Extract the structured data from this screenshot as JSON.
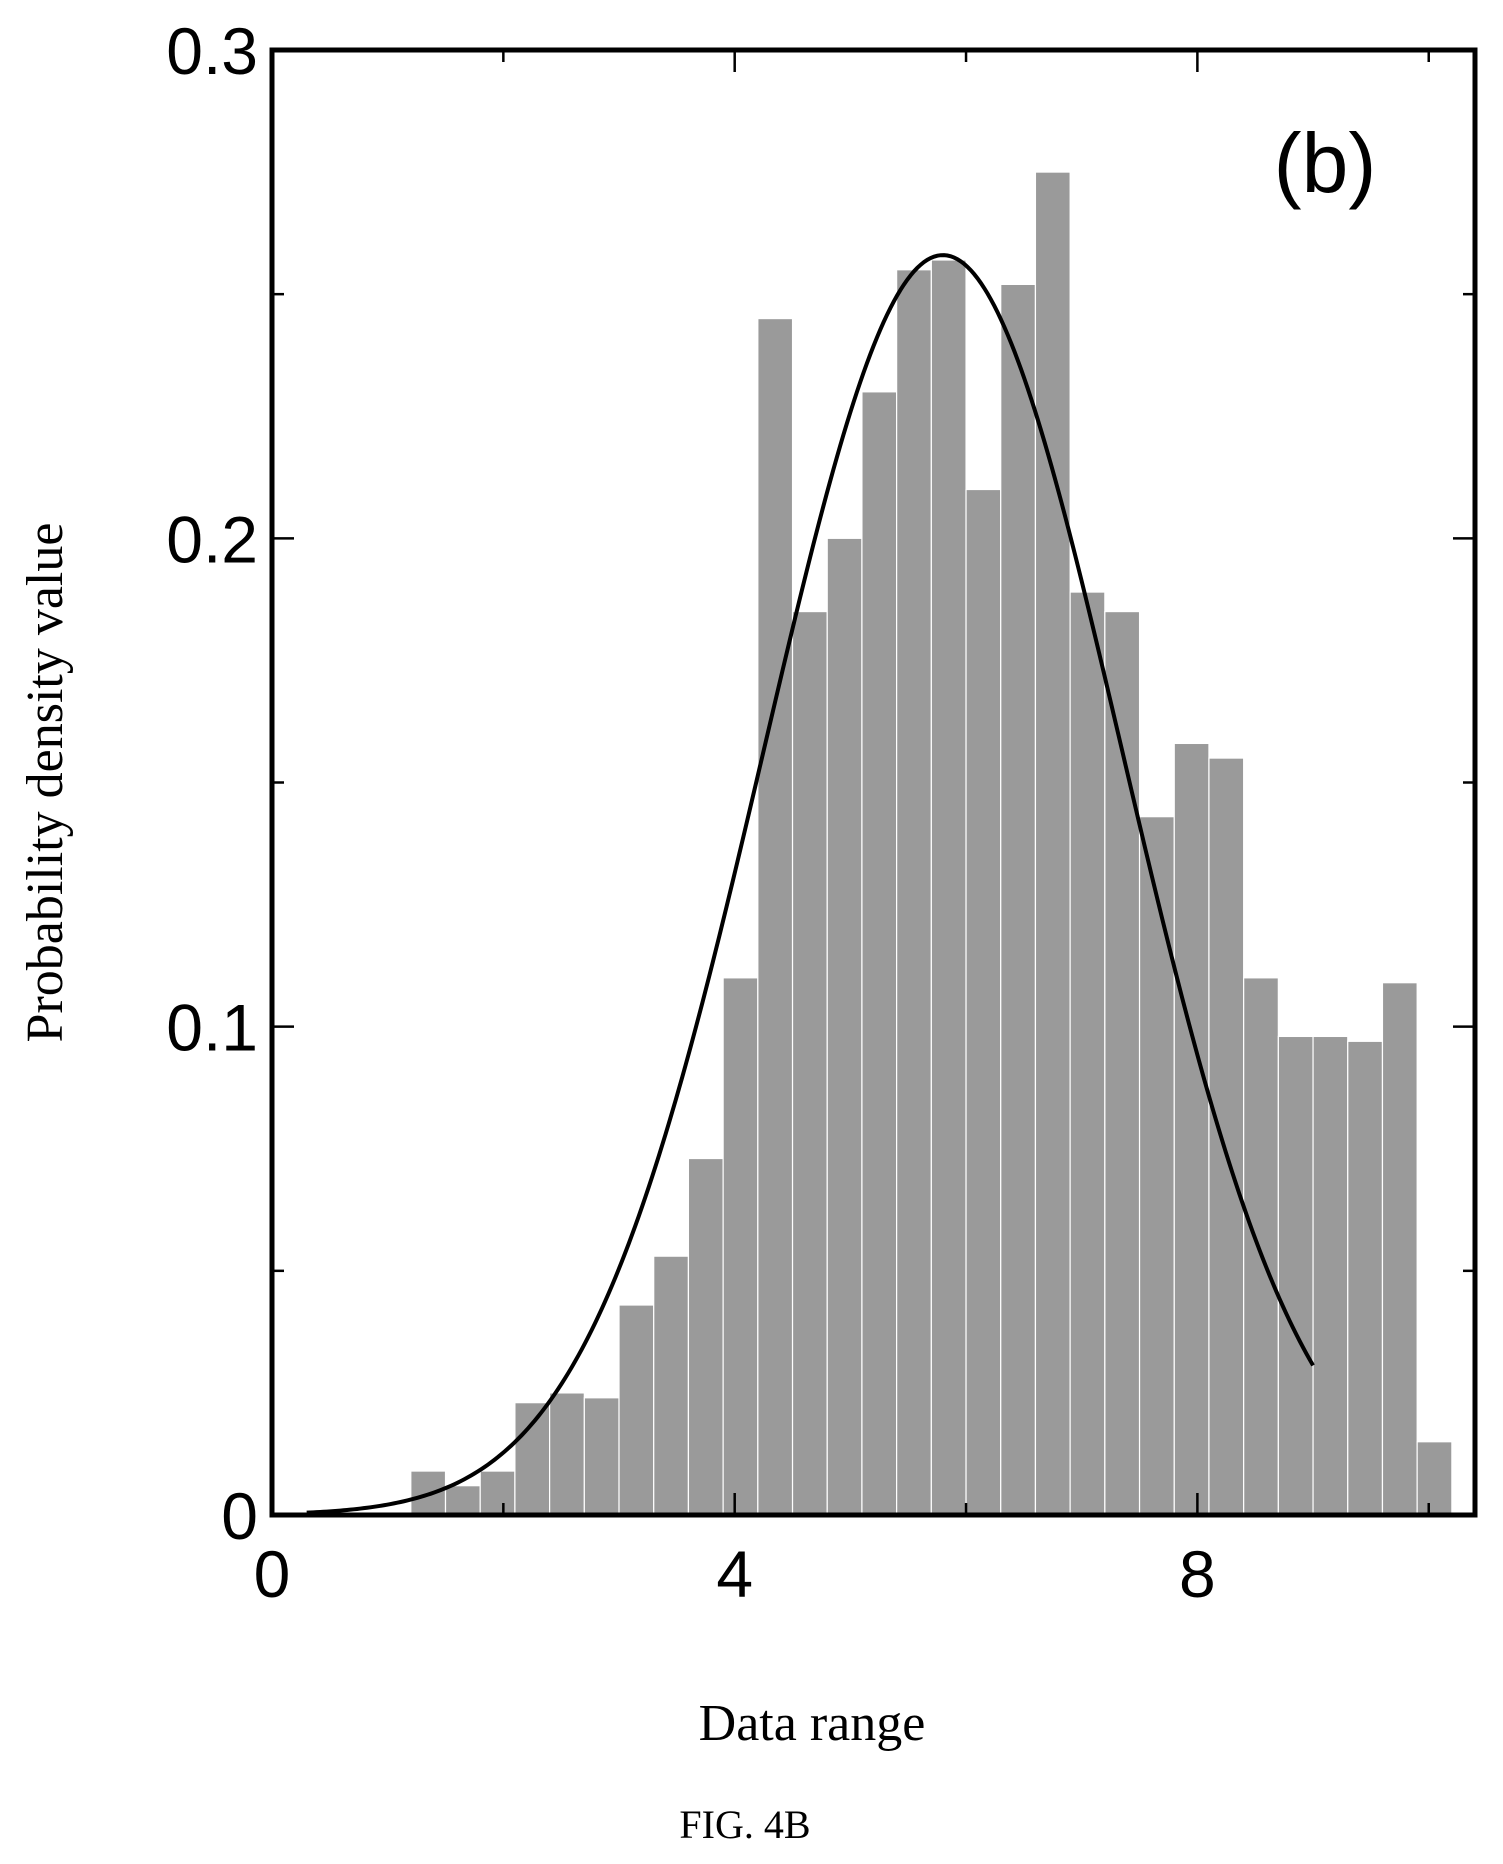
{
  "chart_data": {
    "type": "bar",
    "panel_label": "(b)",
    "xlabel": "Data range",
    "ylabel": "Probability density value",
    "caption": "FIG. 4B",
    "xlim": [
      0,
      10.4
    ],
    "ylim": [
      0,
      0.3
    ],
    "xticks": [
      0,
      4,
      8
    ],
    "xtick_labels": [
      "0",
      "4",
      "8"
    ],
    "yticks": [
      0,
      0.1,
      0.2,
      0.3
    ],
    "ytick_labels": [
      "0",
      "0.1",
      "0.2",
      "0.3"
    ],
    "grid": false,
    "bin_width": 0.3,
    "bin_start": 1.2,
    "histogram_values": [
      0.009,
      0.006,
      0.009,
      0.023,
      0.025,
      0.024,
      0.043,
      0.053,
      0.073,
      0.11,
      0.245,
      0.185,
      0.2,
      0.23,
      0.255,
      0.257,
      0.21,
      0.252,
      0.275,
      0.189,
      0.185,
      0.143,
      0.158,
      0.155,
      0.11,
      0.098,
      0.098,
      0.097,
      0.109,
      0.015
    ],
    "fit_curve": {
      "type": "normal",
      "mean": 5.8,
      "std": 1.55,
      "peak": 0.258,
      "x_range": [
        0.3,
        9.0
      ]
    }
  }
}
